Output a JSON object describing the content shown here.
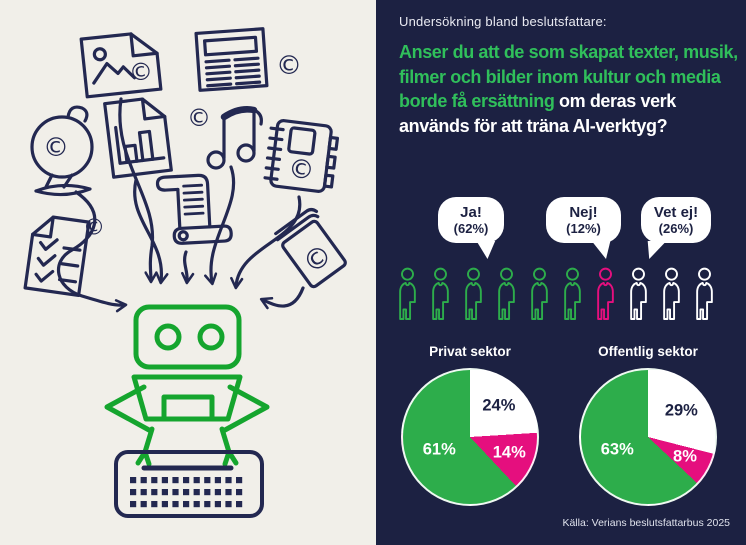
{
  "colors": {
    "background_navy": "#1c2142",
    "background_cream": "#f1efe9",
    "ink": "#232851",
    "robot_green": "#15a52e",
    "headline_green": "#30bf5b",
    "categories": {
      "ja": {
        "fill": "#2dad4b",
        "text": "#ffffff"
      },
      "nej": {
        "fill": "#e50f7e",
        "text": "#ffffff"
      },
      "vet_ej": {
        "fill": "#ffffff",
        "text": "#1c2142"
      }
    }
  },
  "illustration": {
    "icons": [
      "photo-file-icon",
      "newspaper-icon",
      "copyright-icon",
      "globe-icon",
      "bar-chart-document-icon",
      "music-note-icon",
      "notebook-icon",
      "scroll-icon",
      "checklist-icon",
      "book-icon",
      "arrow-icon",
      "robot-icon",
      "keyboard-icon"
    ]
  },
  "right_panel": {
    "kicker": "Undersökning bland beslutsfattare:",
    "headline_green": "Anser du att de som skapat texter, musik, filmer och bilder inom kultur och media borde få ersättning",
    "headline_white": " om deras verk används för att träna AI-verktyg?",
    "bubbles": [
      {
        "label": "Ja!",
        "value": "(62%)"
      },
      {
        "label": "Nej!",
        "value": "(12%)"
      },
      {
        "label": "Vet ej!",
        "value": "(26%)"
      }
    ],
    "people": {
      "sequence": [
        "ja",
        "ja",
        "ja",
        "ja",
        "ja",
        "ja",
        "nej",
        "vet_ej",
        "vet_ej",
        "vet_ej"
      ]
    },
    "pies": [
      {
        "title": "Privat sektor",
        "slices": [
          {
            "category": "vet_ej",
            "value": 24,
            "label": "24%"
          },
          {
            "category": "nej",
            "value": 14,
            "label": "14%"
          },
          {
            "category": "ja",
            "value": 61,
            "label": "61%"
          }
        ]
      },
      {
        "title": "Offentlig sektor",
        "slices": [
          {
            "category": "vet_ej",
            "value": 29,
            "label": "29%"
          },
          {
            "category": "nej",
            "value": 8,
            "label": "8%"
          },
          {
            "category": "ja",
            "value": 63,
            "label": "63%"
          }
        ]
      }
    ],
    "source": "Källa: Verians beslutsfattarbus 2025"
  },
  "chart_data": [
    {
      "type": "pictogram",
      "title": "Undersökning bland beslutsfattare",
      "question": "Anser du att de som skapat texter, musik, filmer och bilder inom kultur och media borde få ersättning om deras verk används för att träna AI-verktyg?",
      "categories": [
        "Ja!",
        "Nej!",
        "Vet ej!"
      ],
      "values": [
        62,
        12,
        26
      ],
      "unit": "percent",
      "icon_counts": [
        6,
        1,
        3
      ],
      "colors": [
        "#2dad4b",
        "#e50f7e",
        "#ffffff"
      ]
    },
    {
      "type": "pie",
      "title": "Privat sektor",
      "labels": [
        "Vet ej",
        "Nej",
        "Ja"
      ],
      "values": [
        24,
        14,
        61
      ],
      "colors": [
        "#ffffff",
        "#e50f7e",
        "#2dad4b"
      ],
      "start_angle": "top",
      "direction": "clockwise"
    },
    {
      "type": "pie",
      "title": "Offentlig sektor",
      "labels": [
        "Vet ej",
        "Nej",
        "Ja"
      ],
      "values": [
        29,
        8,
        63
      ],
      "colors": [
        "#ffffff",
        "#e50f7e",
        "#2dad4b"
      ],
      "start_angle": "top",
      "direction": "clockwise"
    }
  ]
}
